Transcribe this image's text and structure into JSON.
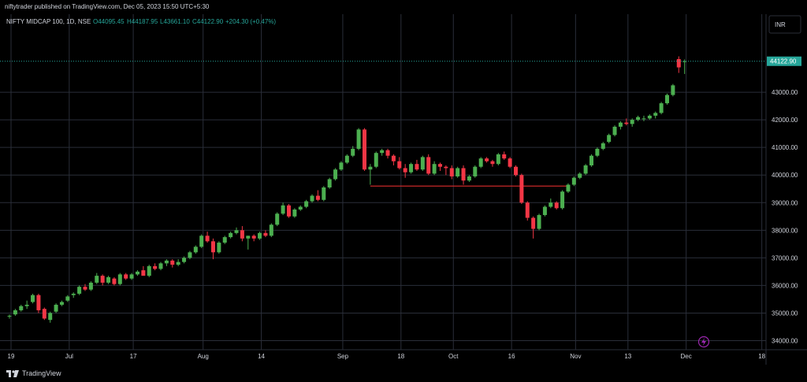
{
  "header": {
    "publisher": "niftytrader published on TradingView.com, Dec 05, 2023 15:50 UTC+5:30",
    "symbol": "NIFTY MIDCAP 100, 1D, NSE",
    "open": "O44095.45",
    "high": "H44187.95",
    "low": "L43661.10",
    "close": "C44122.90",
    "change": "+204.30 (+0.47%)"
  },
  "currency_label": "INR",
  "last_price_label": "44122.90",
  "footer": {
    "brand": "TradingView"
  },
  "colors": {
    "up": "#26a69a",
    "down": "#ef5350",
    "green_candle": "#4caf50",
    "red_candle": "#f23645",
    "grid": "#2a2e39",
    "background": "#000000",
    "support_line": "#c62828"
  },
  "chart_data": {
    "type": "candlestick",
    "x_ticks": [
      "19",
      "Jul",
      "17",
      "Aug",
      "14",
      "Sep",
      "18",
      "Oct",
      "16",
      "Nov",
      "13",
      "Dec",
      "18"
    ],
    "y_ticks": [
      "34000.00",
      "35000.00",
      "36000.00",
      "37000.00",
      "38000.00",
      "39000.00",
      "40000.00",
      "41000.00",
      "42000.00",
      "43000.00"
    ],
    "ylim": [
      33700,
      45200
    ],
    "last_price": 44122.9,
    "candles": [
      [
        34900,
        34950,
        34800,
        34900
      ],
      [
        34950,
        35150,
        34900,
        35100
      ],
      [
        35100,
        35300,
        35050,
        35250
      ],
      [
        35250,
        35450,
        35150,
        35300
      ],
      [
        35400,
        35700,
        35350,
        35650
      ],
      [
        35650,
        35700,
        35000,
        35100
      ],
      [
        35150,
        35200,
        34750,
        34800
      ],
      [
        34750,
        35050,
        34650,
        35000
      ],
      [
        35050,
        35350,
        35000,
        35300
      ],
      [
        35300,
        35450,
        35250,
        35400
      ],
      [
        35450,
        35650,
        35400,
        35600
      ],
      [
        35650,
        35750,
        35550,
        35700
      ],
      [
        35700,
        36000,
        35650,
        35950
      ],
      [
        35950,
        36050,
        35800,
        35850
      ],
      [
        35850,
        36150,
        35800,
        36100
      ],
      [
        36100,
        36450,
        36050,
        36350
      ],
      [
        36350,
        36400,
        36000,
        36100
      ],
      [
        36100,
        36350,
        36050,
        36300
      ],
      [
        36250,
        36300,
        36000,
        36050
      ],
      [
        36050,
        36450,
        36000,
        36400
      ],
      [
        36400,
        36450,
        36200,
        36250
      ],
      [
        36250,
        36450,
        36200,
        36400
      ],
      [
        36400,
        36550,
        36350,
        36500
      ],
      [
        36550,
        36700,
        36450,
        36350
      ],
      [
        36350,
        36750,
        36300,
        36700
      ],
      [
        36700,
        36800,
        36550,
        36600
      ],
      [
        36600,
        36850,
        36550,
        36800
      ],
      [
        36800,
        36950,
        36700,
        36900
      ],
      [
        36900,
        36950,
        36650,
        36750
      ],
      [
        36750,
        36950,
        36700,
        36850
      ],
      [
        36850,
        37050,
        36800,
        37000
      ],
      [
        37000,
        37250,
        36950,
        37200
      ],
      [
        37200,
        37450,
        37150,
        37400
      ],
      [
        37400,
        37850,
        37350,
        37800
      ],
      [
        37800,
        37950,
        37550,
        37600
      ],
      [
        37600,
        37700,
        36950,
        37200
      ],
      [
        37200,
        37600,
        37150,
        37550
      ],
      [
        37550,
        37800,
        37500,
        37750
      ],
      [
        37750,
        37950,
        37700,
        37900
      ],
      [
        37900,
        38100,
        37850,
        38000
      ],
      [
        38000,
        38150,
        37600,
        37700
      ],
      [
        37700,
        37800,
        37300,
        37800
      ],
      [
        37800,
        37850,
        37600,
        37700
      ],
      [
        37700,
        37950,
        37650,
        37900
      ],
      [
        37900,
        38000,
        37750,
        37800
      ],
      [
        37800,
        38250,
        37750,
        38200
      ],
      [
        38200,
        38650,
        38150,
        38600
      ],
      [
        38600,
        39000,
        38550,
        38900
      ],
      [
        38900,
        38950,
        38450,
        38500
      ],
      [
        38500,
        38800,
        38450,
        38750
      ],
      [
        38750,
        38900,
        38700,
        38850
      ],
      [
        38850,
        39100,
        38800,
        39050
      ],
      [
        39050,
        39300,
        39000,
        39250
      ],
      [
        39250,
        39450,
        39050,
        39100
      ],
      [
        39100,
        39600,
        39050,
        39550
      ],
      [
        39550,
        39900,
        39500,
        39850
      ],
      [
        39850,
        40250,
        39800,
        40200
      ],
      [
        40200,
        40500,
        40150,
        40450
      ],
      [
        40450,
        40750,
        40400,
        40700
      ],
      [
        40700,
        41050,
        40650,
        40950
      ],
      [
        40950,
        41700,
        40900,
        41650
      ],
      [
        41650,
        41700,
        40150,
        40200
      ],
      [
        40200,
        40400,
        39650,
        40300
      ],
      [
        40300,
        40850,
        40250,
        40800
      ],
      [
        40800,
        40950,
        40700,
        40900
      ],
      [
        40900,
        40950,
        40600,
        40700
      ],
      [
        40700,
        40750,
        40350,
        40500
      ],
      [
        40500,
        40650,
        40200,
        40250
      ],
      [
        40250,
        40400,
        39900,
        40100
      ],
      [
        40100,
        40450,
        40050,
        40400
      ],
      [
        40400,
        40550,
        40150,
        40200
      ],
      [
        40200,
        40700,
        40150,
        40650
      ],
      [
        40650,
        40750,
        40000,
        40050
      ],
      [
        40050,
        40500,
        40000,
        40400
      ],
      [
        40400,
        40450,
        40150,
        40300
      ],
      [
        40300,
        40350,
        40000,
        40250
      ],
      [
        40250,
        40350,
        39850,
        39950
      ],
      [
        39950,
        40300,
        39900,
        40250
      ],
      [
        40250,
        40350,
        39650,
        39800
      ],
      [
        39800,
        40000,
        39750,
        39950
      ],
      [
        39950,
        40350,
        39900,
        40300
      ],
      [
        40300,
        40650,
        40250,
        40600
      ],
      [
        40600,
        40650,
        40450,
        40500
      ],
      [
        40500,
        40550,
        40300,
        40400
      ],
      [
        40400,
        40800,
        40350,
        40750
      ],
      [
        40750,
        40850,
        40550,
        40600
      ],
      [
        40600,
        40650,
        40250,
        40300
      ],
      [
        40300,
        40350,
        39950,
        40000
      ],
      [
        40000,
        40050,
        38950,
        39000
      ],
      [
        39000,
        39050,
        38350,
        38450
      ],
      [
        38450,
        38500,
        37700,
        38050
      ],
      [
        38050,
        38600,
        38000,
        38550
      ],
      [
        38550,
        38900,
        38500,
        38850
      ],
      [
        38850,
        39150,
        38800,
        39000
      ],
      [
        39000,
        39050,
        38750,
        38800
      ],
      [
        38800,
        39450,
        38750,
        39400
      ],
      [
        39400,
        39700,
        39350,
        39650
      ],
      [
        39650,
        39950,
        39600,
        39900
      ],
      [
        39900,
        40100,
        39850,
        40050
      ],
      [
        40050,
        40400,
        40000,
        40350
      ],
      [
        40350,
        40750,
        40300,
        40700
      ],
      [
        40700,
        41000,
        40650,
        40950
      ],
      [
        40950,
        41200,
        40900,
        41150
      ],
      [
        41200,
        41500,
        41150,
        41450
      ],
      [
        41450,
        41800,
        41400,
        41750
      ],
      [
        41750,
        41950,
        41650,
        41900
      ],
      [
        41900,
        42050,
        41800,
        41850
      ],
      [
        41850,
        42050,
        41750,
        42000
      ],
      [
        42000,
        42150,
        41950,
        42100
      ],
      [
        42050,
        42150,
        41950,
        42050
      ],
      [
        42050,
        42200,
        42000,
        42150
      ],
      [
        42150,
        42300,
        42050,
        42250
      ],
      [
        42250,
        42650,
        42200,
        42600
      ],
      [
        42600,
        42950,
        42550,
        42900
      ],
      [
        42900,
        43300,
        42850,
        43250
      ],
      [
        44200,
        44300,
        43700,
        43900
      ],
      [
        44095.45,
        44187.95,
        43661.1,
        44122.9
      ]
    ],
    "support_line": {
      "start_index": 62,
      "end_index": 96,
      "value": 39600
    }
  }
}
